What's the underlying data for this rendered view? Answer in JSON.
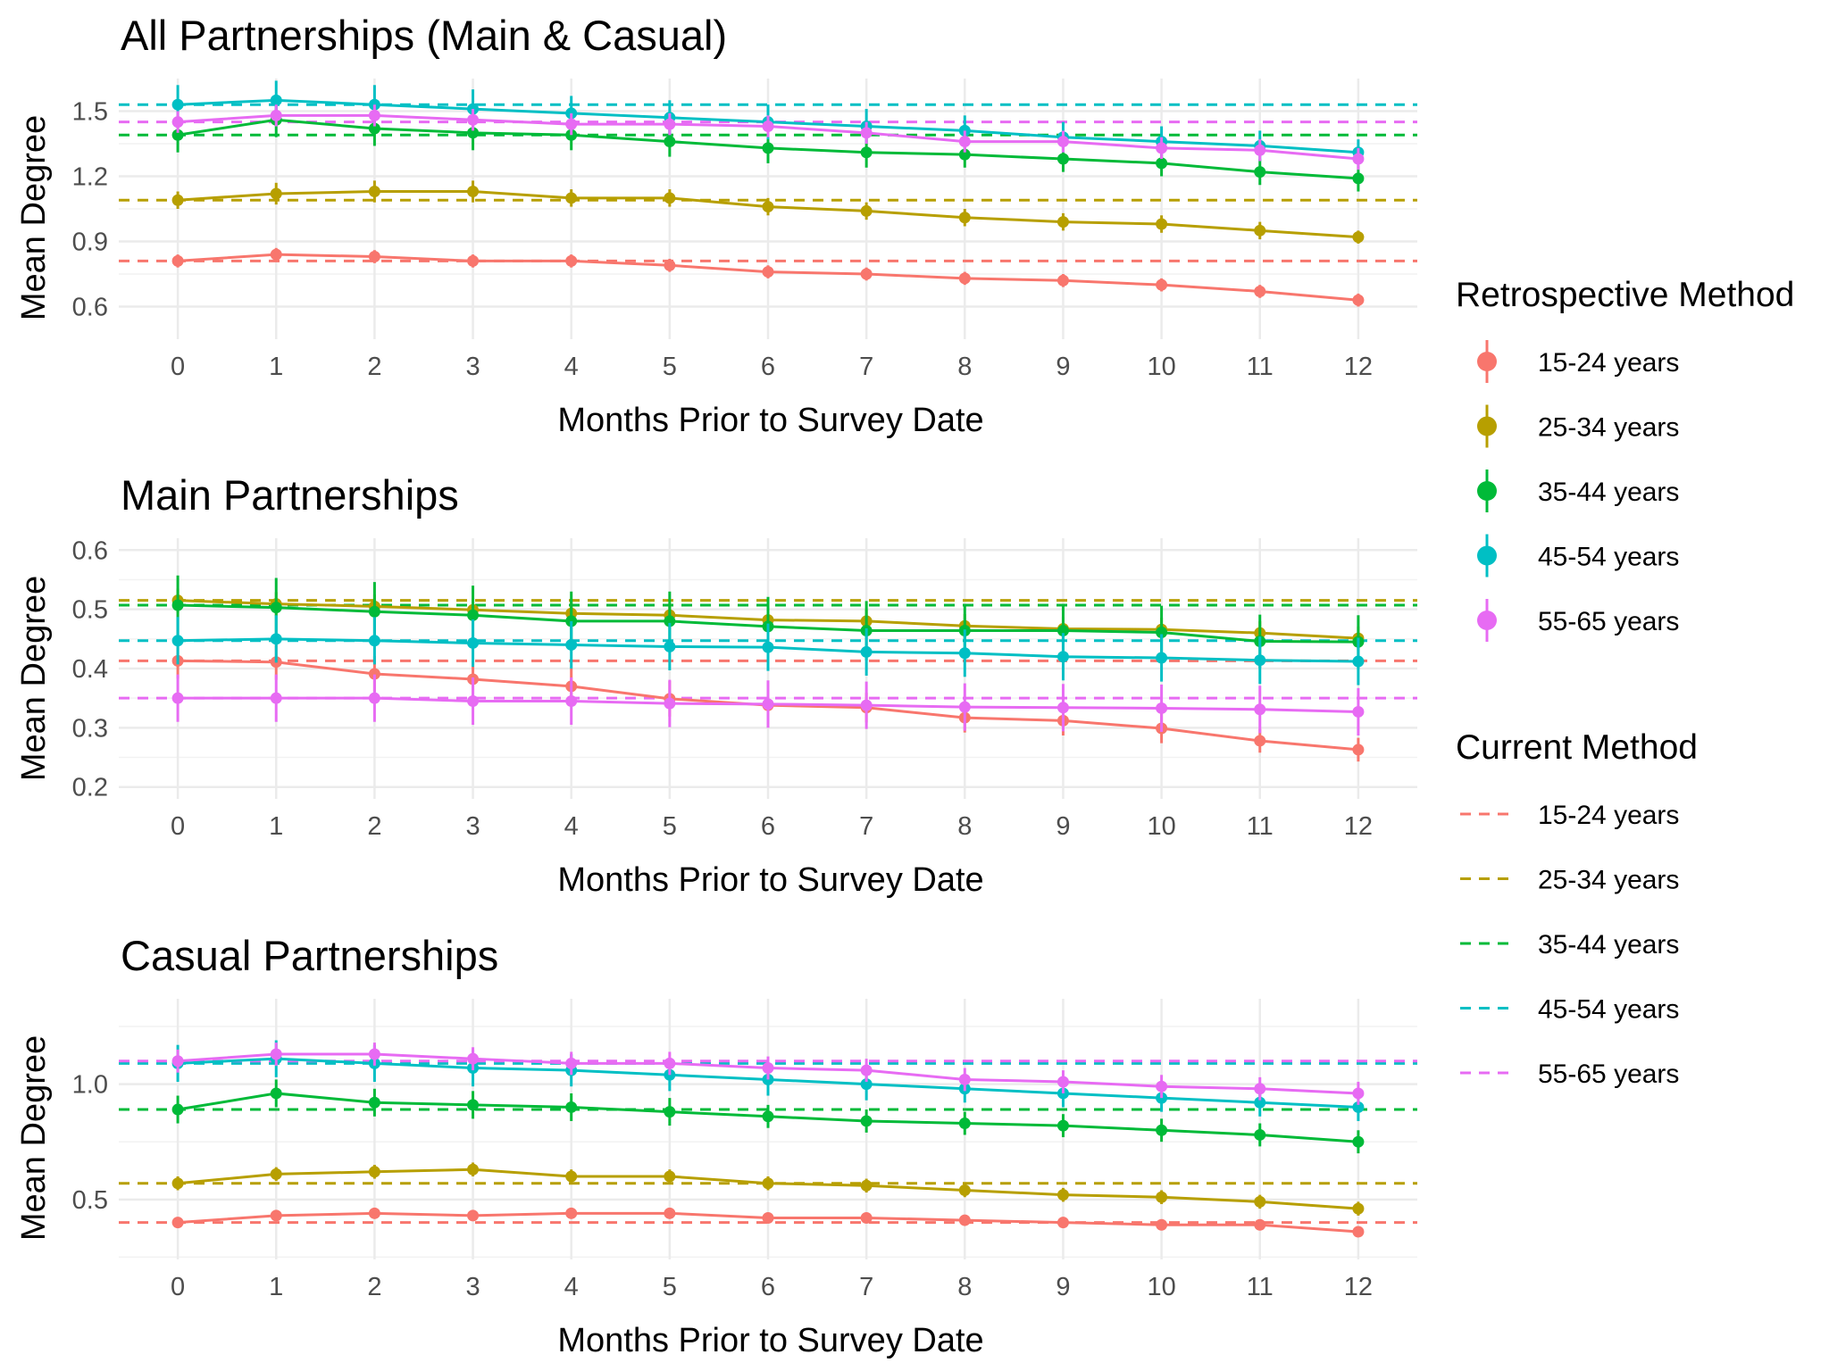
{
  "colors": {
    "15-24 years": "#F8766D",
    "25-34 years": "#B79F00",
    "35-44 years": "#00BA38",
    "45-54 years": "#00BFC4",
    "55-65 years": "#E76BF3"
  },
  "legend": {
    "retrospective_title": "Retrospective Method",
    "current_title": "Current Method",
    "groups": [
      "15-24 years",
      "25-34 years",
      "35-44 years",
      "45-54 years",
      "55-65 years"
    ]
  },
  "chart_data": [
    {
      "type": "line",
      "title": "All Partnerships (Main & Casual)",
      "xlabel": "Months Prior to Survey Date",
      "ylabel": "Mean Degree",
      "x": [
        0,
        1,
        2,
        3,
        4,
        5,
        6,
        7,
        8,
        9,
        10,
        11,
        12
      ],
      "x_ticks": [
        "0",
        "1",
        "2",
        "3",
        "4",
        "5",
        "6",
        "7",
        "8",
        "9",
        "10",
        "11",
        "12"
      ],
      "y_ticks": [
        "0.6",
        "0.9",
        "1.2",
        "1.5"
      ],
      "y_tick_values": [
        0.6,
        0.9,
        1.2,
        1.5
      ],
      "ylim": [
        0.45,
        1.65
      ],
      "grid": true,
      "series": [
        {
          "name": "15-24 years",
          "values": [
            0.81,
            0.84,
            0.83,
            0.81,
            0.81,
            0.79,
            0.76,
            0.75,
            0.73,
            0.72,
            0.7,
            0.67,
            0.63
          ],
          "err": [
            0.03,
            0.03,
            0.03,
            0.03,
            0.03,
            0.03,
            0.03,
            0.03,
            0.03,
            0.03,
            0.03,
            0.03,
            0.03
          ],
          "current": 0.81
        },
        {
          "name": "25-34 years",
          "values": [
            1.09,
            1.12,
            1.13,
            1.13,
            1.1,
            1.1,
            1.06,
            1.04,
            1.01,
            0.99,
            0.98,
            0.95,
            0.92
          ],
          "err": [
            0.04,
            0.05,
            0.05,
            0.05,
            0.04,
            0.04,
            0.04,
            0.04,
            0.04,
            0.04,
            0.04,
            0.04,
            0.03
          ],
          "current": 1.09
        },
        {
          "name": "35-44 years",
          "values": [
            1.39,
            1.46,
            1.42,
            1.4,
            1.39,
            1.36,
            1.33,
            1.31,
            1.3,
            1.28,
            1.26,
            1.22,
            1.19
          ],
          "err": [
            0.08,
            0.08,
            0.08,
            0.08,
            0.07,
            0.07,
            0.07,
            0.07,
            0.06,
            0.06,
            0.06,
            0.06,
            0.06
          ],
          "current": 1.39
        },
        {
          "name": "45-54 years",
          "values": [
            1.53,
            1.55,
            1.53,
            1.51,
            1.49,
            1.47,
            1.45,
            1.43,
            1.41,
            1.38,
            1.36,
            1.34,
            1.31
          ],
          "err": [
            0.09,
            0.09,
            0.09,
            0.09,
            0.08,
            0.08,
            0.08,
            0.08,
            0.07,
            0.07,
            0.07,
            0.07,
            0.06
          ],
          "current": 1.53
        },
        {
          "name": "55-65 years",
          "values": [
            1.45,
            1.48,
            1.48,
            1.46,
            1.44,
            1.44,
            1.43,
            1.4,
            1.36,
            1.36,
            1.33,
            1.32,
            1.28
          ],
          "err": [
            0.05,
            0.05,
            0.05,
            0.05,
            0.05,
            0.05,
            0.05,
            0.05,
            0.05,
            0.05,
            0.05,
            0.05,
            0.05
          ],
          "current": 1.45
        }
      ]
    },
    {
      "type": "line",
      "title": "Main Partnerships",
      "xlabel": "Months Prior to Survey Date",
      "ylabel": "Mean Degree",
      "x": [
        0,
        1,
        2,
        3,
        4,
        5,
        6,
        7,
        8,
        9,
        10,
        11,
        12
      ],
      "x_ticks": [
        "0",
        "1",
        "2",
        "3",
        "4",
        "5",
        "6",
        "7",
        "8",
        "9",
        "10",
        "11",
        "12"
      ],
      "y_ticks": [
        "0.2",
        "0.3",
        "0.4",
        "0.5",
        "0.6"
      ],
      "y_tick_values": [
        0.2,
        0.3,
        0.4,
        0.5,
        0.6
      ],
      "ylim": [
        0.18,
        0.62
      ],
      "grid": true,
      "series": [
        {
          "name": "15-24 years",
          "values": [
            0.413,
            0.411,
            0.391,
            0.382,
            0.37,
            0.349,
            0.338,
            0.334,
            0.317,
            0.312,
            0.299,
            0.278,
            0.263
          ],
          "err": [
            0.03,
            0.03,
            0.03,
            0.03,
            0.03,
            0.03,
            0.025,
            0.025,
            0.025,
            0.025,
            0.025,
            0.02,
            0.02
          ],
          "current": 0.413
        },
        {
          "name": "25-34 years",
          "values": [
            0.515,
            0.509,
            0.505,
            0.499,
            0.493,
            0.49,
            0.482,
            0.48,
            0.472,
            0.467,
            0.466,
            0.46,
            0.451
          ],
          "err": [
            0.02,
            0.02,
            0.02,
            0.02,
            0.02,
            0.02,
            0.02,
            0.02,
            0.02,
            0.02,
            0.02,
            0.02,
            0.02
          ],
          "current": 0.515
        },
        {
          "name": "35-44 years",
          "values": [
            0.507,
            0.503,
            0.496,
            0.49,
            0.48,
            0.48,
            0.471,
            0.464,
            0.464,
            0.464,
            0.461,
            0.446,
            0.445
          ],
          "err": [
            0.05,
            0.05,
            0.05,
            0.05,
            0.05,
            0.05,
            0.05,
            0.05,
            0.045,
            0.045,
            0.045,
            0.045,
            0.045
          ],
          "current": 0.507
        },
        {
          "name": "45-54 years",
          "values": [
            0.447,
            0.45,
            0.447,
            0.443,
            0.44,
            0.437,
            0.436,
            0.428,
            0.426,
            0.42,
            0.418,
            0.414,
            0.412
          ],
          "err": [
            0.04,
            0.04,
            0.04,
            0.04,
            0.04,
            0.04,
            0.04,
            0.04,
            0.04,
            0.04,
            0.04,
            0.04,
            0.04
          ],
          "current": 0.447
        },
        {
          "name": "55-65 years",
          "values": [
            0.35,
            0.35,
            0.35,
            0.345,
            0.345,
            0.341,
            0.34,
            0.338,
            0.335,
            0.334,
            0.333,
            0.331,
            0.327
          ],
          "err": [
            0.04,
            0.04,
            0.04,
            0.04,
            0.04,
            0.04,
            0.04,
            0.04,
            0.04,
            0.04,
            0.04,
            0.04,
            0.04
          ],
          "current": 0.35
        }
      ]
    },
    {
      "type": "line",
      "title": "Casual Partnerships",
      "xlabel": "Months Prior to Survey Date",
      "ylabel": "Mean Degree",
      "x": [
        0,
        1,
        2,
        3,
        4,
        5,
        6,
        7,
        8,
        9,
        10,
        11,
        12
      ],
      "x_ticks": [
        "0",
        "1",
        "2",
        "3",
        "4",
        "5",
        "6",
        "7",
        "8",
        "9",
        "10",
        "11",
        "12"
      ],
      "y_ticks": [
        "0.5",
        "1.0"
      ],
      "y_tick_values": [
        0.5,
        1.0
      ],
      "ylim": [
        0.24,
        1.37
      ],
      "grid": true,
      "series": [
        {
          "name": "15-24 years",
          "values": [
            0.4,
            0.43,
            0.44,
            0.43,
            0.44,
            0.44,
            0.42,
            0.42,
            0.41,
            0.4,
            0.39,
            0.39,
            0.36
          ],
          "err": [
            0.02,
            0.02,
            0.02,
            0.02,
            0.02,
            0.02,
            0.02,
            0.02,
            0.02,
            0.02,
            0.02,
            0.02,
            0.02
          ],
          "current": 0.4
        },
        {
          "name": "25-34 years",
          "values": [
            0.57,
            0.61,
            0.62,
            0.63,
            0.6,
            0.6,
            0.57,
            0.56,
            0.54,
            0.52,
            0.51,
            0.49,
            0.46
          ],
          "err": [
            0.03,
            0.03,
            0.03,
            0.03,
            0.03,
            0.03,
            0.03,
            0.03,
            0.03,
            0.03,
            0.03,
            0.03,
            0.03
          ],
          "current": 0.57
        },
        {
          "name": "35-44 years",
          "values": [
            0.89,
            0.96,
            0.92,
            0.91,
            0.9,
            0.88,
            0.86,
            0.84,
            0.83,
            0.82,
            0.8,
            0.78,
            0.75
          ],
          "err": [
            0.06,
            0.06,
            0.06,
            0.06,
            0.06,
            0.06,
            0.05,
            0.05,
            0.05,
            0.05,
            0.05,
            0.05,
            0.05
          ],
          "current": 0.89
        },
        {
          "name": "45-54 years",
          "values": [
            1.09,
            1.11,
            1.09,
            1.07,
            1.06,
            1.04,
            1.02,
            1.0,
            0.98,
            0.96,
            0.94,
            0.92,
            0.9
          ],
          "err": [
            0.08,
            0.08,
            0.08,
            0.08,
            0.07,
            0.07,
            0.07,
            0.07,
            0.06,
            0.06,
            0.06,
            0.06,
            0.06
          ],
          "current": 1.09
        },
        {
          "name": "55-65 years",
          "values": [
            1.1,
            1.13,
            1.13,
            1.11,
            1.09,
            1.09,
            1.07,
            1.06,
            1.02,
            1.01,
            0.99,
            0.98,
            0.96
          ],
          "err": [
            0.05,
            0.05,
            0.05,
            0.05,
            0.05,
            0.05,
            0.05,
            0.05,
            0.05,
            0.05,
            0.05,
            0.05,
            0.05
          ],
          "current": 1.1
        }
      ]
    }
  ]
}
